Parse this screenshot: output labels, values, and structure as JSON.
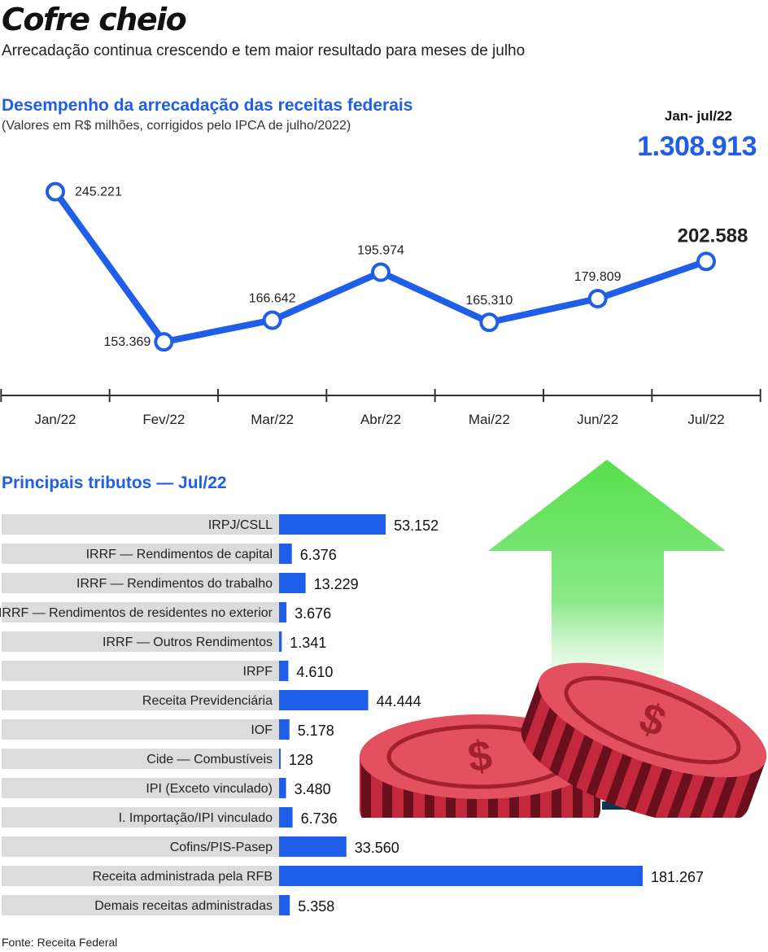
{
  "header": {
    "title": "Cofre cheio",
    "subtitle": "Arrecadação continua crescendo e tem maior resultado para meses de julho"
  },
  "total": {
    "label": "Jan- jul/22",
    "value": "1.308.913"
  },
  "source": "Fonte: Receita Federal",
  "colors": {
    "accent": "#1f5ee8",
    "bar_track": "#dcdcdc",
    "arrow": "#56e04a",
    "coin": "#b8283a"
  },
  "chart_data": [
    {
      "type": "line",
      "title": "Desempenho da arrecadação das receitas federais",
      "subtitle": "(Valores em R$ milhões, corrigidos pelo IPCA de julho/2022)",
      "categories": [
        "Jan/22",
        "Fev/22",
        "Mar/22",
        "Abr/22",
        "Mai/22",
        "Jun/22",
        "Jul/22"
      ],
      "values": [
        245221,
        153369,
        166642,
        195974,
        165310,
        179809,
        202588
      ],
      "labels": [
        "245.221",
        "153.369",
        "166.642",
        "195.974",
        "165.310",
        "179.809",
        "202.588"
      ],
      "ylim": [
        140000,
        250000
      ],
      "grid": false,
      "xlabel": "",
      "ylabel": ""
    },
    {
      "type": "bar",
      "orientation": "horizontal",
      "title": "Principais tributos — Jul/22",
      "categories": [
        "IRPJ/CSLL",
        "IRRF — Rendimentos de capital",
        "IRRF — Rendimentos do trabalho",
        "IRRF — Rendimentos de residentes no exterior",
        "IRRF — Outros Rendimentos",
        "IRPF",
        "Receita Previdenciária",
        "IOF",
        "Cide — Combustíveis",
        "IPI (Exceto vinculado)",
        "I. Importação/IPI vinculado",
        "Cofins/PIS-Pasep",
        "Receita administrada pela RFB",
        "Demais receitas administradas"
      ],
      "values": [
        53152,
        6376,
        13229,
        3676,
        1341,
        4610,
        44444,
        5178,
        128,
        3480,
        6736,
        33560,
        181267,
        5358
      ],
      "labels": [
        "53.152",
        "6.376",
        "13.229",
        "3.676",
        "1.341",
        "4.610",
        "44.444",
        "5.178",
        "128",
        "3.480",
        "6.736",
        "33.560",
        "181.267",
        "5.358"
      ],
      "xlim": [
        0,
        181267
      ],
      "grid": false
    }
  ]
}
